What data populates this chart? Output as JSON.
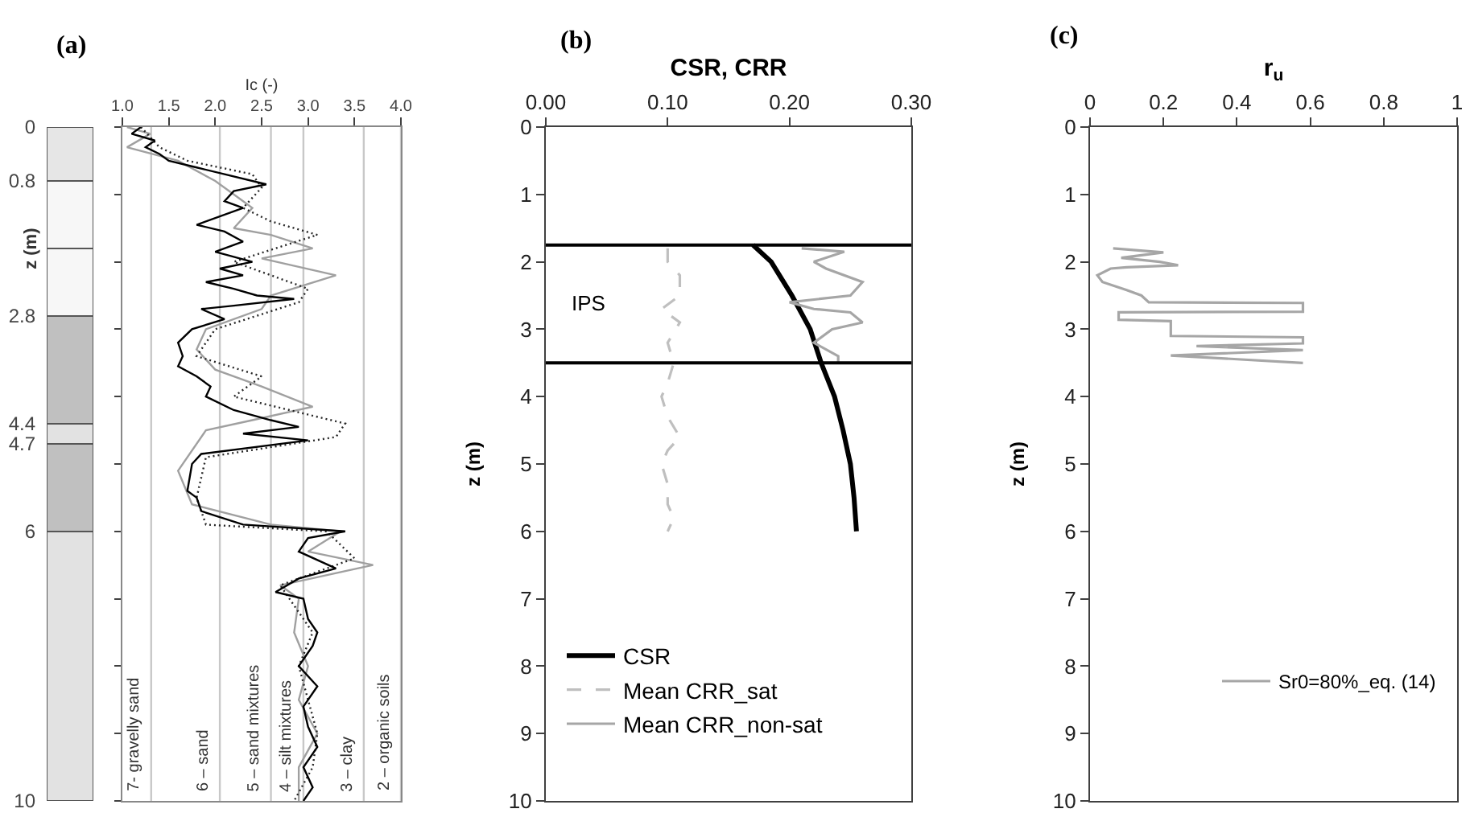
{
  "chart_data": [
    {
      "type": "bar",
      "title": "(a)",
      "ylabel": "z (m)",
      "categories": [
        null
      ],
      "stacked": true,
      "series": [
        {
          "color": "#e6e6e6",
          "values": [
            0.8
          ]
        },
        {
          "color": "#f7f7f7",
          "values": [
            1.0
          ]
        },
        {
          "color": "#f7f7f7",
          "values": [
            1.0
          ]
        },
        {
          "color": "#c0c0c0",
          "values": [
            1.6
          ]
        },
        {
          "color": "#e2e2e2",
          "values": [
            0.3
          ]
        },
        {
          "color": "#c0c0c0",
          "values": [
            1.3
          ]
        },
        {
          "color": "#e2e2e2",
          "values": [
            4.0
          ]
        }
      ],
      "ylim": [
        10,
        0
      ],
      "yticks": [
        0,
        0.8,
        2.8,
        4.4,
        4.7,
        6,
        10
      ],
      "tick_labels": "y"
    },
    {
      "type": "line",
      "xlabel": "Ic (-)",
      "xlim": [
        1,
        4
      ],
      "xticks": [
        {
          "value": 1,
          "label": "1.0"
        },
        {
          "value": 1.5,
          "label": "1.5"
        },
        {
          "value": 2,
          "label": "2.0"
        },
        {
          "value": 2.5,
          "label": "2.5"
        },
        {
          "value": 3,
          "label": "3.0"
        },
        {
          "value": 3.5,
          "label": "3.5"
        },
        {
          "value": 4,
          "label": "4.0"
        }
      ],
      "ylim": [
        10,
        0
      ],
      "yticks": [
        {
          "value": 0,
          "label": null
        },
        {
          "value": 1,
          "label": null
        },
        {
          "value": 2,
          "label": null
        },
        {
          "value": 3,
          "label": null
        },
        {
          "value": 4,
          "label": null
        },
        {
          "value": 5,
          "label": null
        },
        {
          "value": 6,
          "label": null
        },
        {
          "value": 7,
          "label": null
        },
        {
          "value": 8,
          "label": null
        },
        {
          "value": 9,
          "label": null
        },
        {
          "value": 10,
          "label": null
        }
      ],
      "tick_labels": "x",
      "ref_lines": [
        {
          "axis": "x",
          "value": 1.31,
          "label": "7- gravelly sand",
          "color": "#c8c8c8"
        },
        {
          "axis": "x",
          "value": 2.05,
          "label": "6 – sand",
          "color": "#c8c8c8"
        },
        {
          "axis": "x",
          "value": 2.6,
          "label": "5 – sand mixtures",
          "color": "#c8c8c8"
        },
        {
          "axis": "x",
          "value": 2.95,
          "label": "4 – silt mixtures",
          "color": "#c8c8c8"
        },
        {
          "axis": "x",
          "value": 3.6,
          "label": "3 – clay",
          "color": "#c8c8c8"
        },
        {
          "axis": "x",
          "value": 4,
          "label": "2 – organic soils",
          "color": "#c8c8c8"
        }
      ],
      "series": [
        {
          "color": "#a0a0a0",
          "x": [
            1.05,
            1.3,
            1.05,
            1.6,
            2.0,
            2.2,
            2.4,
            2.2,
            2.6,
            3.05,
            2.5,
            3.3,
            2.6,
            2.5,
            1.9,
            1.8,
            2.0,
            2.5,
            3.05,
            2.4,
            1.9,
            1.6,
            1.75,
            2.6,
            3.35,
            3.0,
            3.7,
            2.7,
            2.9,
            2.85,
            3.0,
            2.9,
            3.1,
            2.9,
            2.9
          ],
          "values": [
            0.0,
            0.1,
            0.3,
            0.5,
            0.8,
            1.0,
            1.2,
            1.5,
            1.6,
            1.8,
            1.95,
            2.2,
            2.5,
            2.7,
            3.0,
            3.3,
            3.6,
            3.85,
            4.15,
            4.35,
            4.5,
            5.1,
            5.6,
            5.9,
            6.0,
            6.3,
            6.5,
            6.8,
            7.0,
            7.5,
            8.0,
            8.5,
            9.0,
            9.5,
            10.0
          ]
        },
        {
          "color": "#262626",
          "line_style": "dotted",
          "x": [
            1.2,
            1.4,
            1.7,
            2.4,
            2.5,
            2.3,
            2.6,
            3.1,
            2.2,
            2.6,
            3.0,
            2.9,
            2.0,
            1.8,
            2.5,
            2.2,
            3.4,
            3.3,
            1.9,
            1.8,
            1.9,
            3.2,
            3.5,
            2.7,
            3.05,
            2.9,
            3.0,
            3.1,
            3.05,
            2.85
          ],
          "values": [
            0.0,
            0.3,
            0.5,
            0.7,
            0.9,
            1.2,
            1.4,
            1.6,
            2.0,
            2.2,
            2.4,
            2.6,
            3.0,
            3.4,
            3.7,
            4.0,
            4.4,
            4.6,
            4.9,
            5.5,
            5.9,
            6.0,
            6.4,
            6.8,
            7.5,
            8.0,
            8.5,
            9.0,
            9.5,
            10.0
          ]
        },
        {
          "color": "#000000",
          "x": [
            1.2,
            1.1,
            1.35,
            1.25,
            1.4,
            1.5,
            1.8,
            2.1,
            2.55,
            2.2,
            2.1,
            2.3,
            1.8,
            2.1,
            2.3,
            2.0,
            2.4,
            2.05,
            2.3,
            1.9,
            2.2,
            2.45,
            2.85,
            2.2,
            1.85,
            2.1,
            1.75,
            1.6,
            1.65,
            1.6,
            1.8,
            1.95,
            1.9,
            2.2,
            2.6,
            2.9,
            2.3,
            3.0,
            1.85,
            1.75,
            1.7,
            1.8,
            1.85,
            2.3,
            3.4,
            3.0,
            2.9,
            3.3,
            2.9,
            2.65,
            2.95,
            3.0,
            3.1,
            3.05,
            2.9,
            3.1,
            2.95,
            3.0,
            3.1,
            2.95,
            3.05,
            2.95
          ],
          "values": [
            0.0,
            0.1,
            0.2,
            0.3,
            0.4,
            0.5,
            0.6,
            0.7,
            0.85,
            0.95,
            1.1,
            1.2,
            1.45,
            1.55,
            1.7,
            1.85,
            2.0,
            2.1,
            2.2,
            2.3,
            2.4,
            2.5,
            2.55,
            2.65,
            2.7,
            2.85,
            3.0,
            3.2,
            3.4,
            3.55,
            3.7,
            3.85,
            4.0,
            4.2,
            4.35,
            4.45,
            4.55,
            4.65,
            4.85,
            5.0,
            5.4,
            5.5,
            5.7,
            5.9,
            6.0,
            6.1,
            6.3,
            6.55,
            6.7,
            6.9,
            7.0,
            7.3,
            7.5,
            7.7,
            8.0,
            8.3,
            8.6,
            8.9,
            9.2,
            9.5,
            9.8,
            10.0
          ]
        }
      ]
    },
    {
      "type": "line",
      "title": "(b)",
      "xlabel": "CSR, CRR",
      "ylabel": "z (m)",
      "xlim": [
        0,
        0.3
      ],
      "xticks": [
        {
          "value": 0,
          "label": "0.00"
        },
        {
          "value": 0.1,
          "label": "0.10"
        },
        {
          "value": 0.2,
          "label": "0.20"
        },
        {
          "value": 0.3,
          "label": "0.30"
        }
      ],
      "ylim": [
        10,
        0
      ],
      "yticks": [
        0,
        1,
        2,
        3,
        4,
        5,
        6,
        7,
        8,
        9,
        10
      ],
      "ref_lines": [
        {
          "axis": "y",
          "value": 1.75,
          "color": "#000000"
        },
        {
          "axis": "y",
          "value": 3.5,
          "color": "#000000"
        }
      ],
      "annotations": [
        "IPS"
      ],
      "legend": "bottom left",
      "series": [
        {
          "name": "CSR",
          "color": "#000000",
          "x": [
            0.17,
            0.185,
            0.202,
            0.217,
            0.226,
            0.237,
            0.244,
            0.25,
            0.253,
            0.255
          ],
          "values": [
            1.75,
            2.0,
            2.5,
            3.0,
            3.5,
            4.0,
            4.5,
            5.0,
            5.5,
            6.0
          ]
        },
        {
          "name": "Mean CRR_sat",
          "color": "#bfbfbf",
          "line_style": "dashed",
          "x": [
            0.1,
            0.1,
            0.11,
            0.11,
            0.095,
            0.11,
            0.1,
            0.105,
            0.1,
            0.095,
            0.1,
            0.11,
            0.1,
            0.095,
            0.1,
            0.1,
            0.105,
            0.1
          ],
          "values": [
            1.8,
            2.0,
            2.2,
            2.5,
            2.7,
            2.9,
            3.2,
            3.5,
            3.8,
            4.0,
            4.3,
            4.6,
            4.8,
            5.0,
            5.3,
            5.6,
            5.8,
            6.0
          ]
        },
        {
          "name": "Mean CRR_non-sat",
          "color": "#a6a6a6",
          "x": [
            0.21,
            0.245,
            0.22,
            0.23,
            0.26,
            0.25,
            0.2,
            0.22,
            0.25,
            0.26,
            0.235,
            0.22,
            0.24,
            0.24
          ],
          "values": [
            1.8,
            1.85,
            2.0,
            2.1,
            2.3,
            2.5,
            2.6,
            2.7,
            2.75,
            2.9,
            3.0,
            3.2,
            3.4,
            3.5
          ]
        }
      ]
    },
    {
      "type": "line",
      "title": "(c)",
      "xlabel": "r$_{u}$",
      "ylabel": "z (m)",
      "xlim": [
        0,
        1
      ],
      "xticks": [
        0,
        0.2,
        0.4,
        0.6,
        0.8,
        1
      ],
      "ylim": [
        10,
        0
      ],
      "yticks": [
        0,
        1,
        2,
        3,
        4,
        5,
        6,
        7,
        8,
        9,
        10
      ],
      "legend": "bottom right",
      "series": [
        {
          "name": "Sr0=80%_eq. (14)",
          "color": "#a6a6a6",
          "x": [
            0.063,
            0.2,
            0.085,
            0.19,
            0.24,
            0.1,
            0.056,
            0.02,
            0.034,
            0.1,
            0.14,
            0.16,
            0.58,
            0.58,
            0.078,
            0.078,
            0.22,
            0.22,
            0.22,
            0.58,
            0.58,
            0.29,
            0.58,
            0.22,
            0.58
          ],
          "values": [
            1.8,
            1.86,
            1.94,
            2.0,
            2.05,
            2.08,
            2.1,
            2.2,
            2.3,
            2.42,
            2.5,
            2.6,
            2.61,
            2.74,
            2.75,
            2.86,
            2.88,
            2.96,
            3.1,
            3.12,
            3.21,
            3.25,
            3.31,
            3.39,
            3.5
          ]
        }
      ]
    }
  ]
}
